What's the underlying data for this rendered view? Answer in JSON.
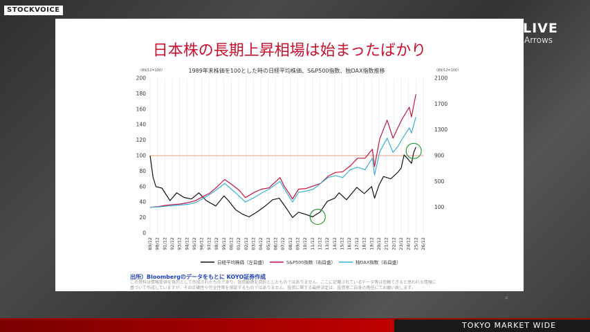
{
  "brand": {
    "stockvoice": "STOCKVOICE",
    "live": "LIVE",
    "arrows": "Arrows"
  },
  "slide": {
    "title": "日本株の長期上昇相場は始まったばかり",
    "source": "出所）Bloombergのデータをもとに KOYO証券作成",
    "disclaimer_1": "この資料は情報提供を目的として作成されたものであり、投資勧誘を目的としたものではありません。ここに記載されているデータ等は信頼できると思われる情報に",
    "disclaimer_2": "基づいて作成していますが、その正確性や完全性等を保証するものではありません。投資に関する最終決定は、投資者ご自身の責任にてお願い致します。",
    "page": "4"
  },
  "footer": {
    "market": "TOKYO MARKET WIDE"
  },
  "chart_data": {
    "type": "line",
    "title": "1989年末株価を100とした時の日経平均株価、S&P500指数、独DAX指数推移",
    "ylabel_left": "（89/12=100）",
    "ylabel_right": "（89/12=100）",
    "ylim_left": [
      0,
      200
    ],
    "yticks_left": [
      0,
      20,
      40,
      60,
      80,
      100,
      120,
      140,
      160,
      180,
      200
    ],
    "ylim_right": [
      -300,
      2100
    ],
    "yticks_right": [
      100,
      500,
      900,
      1300,
      1700,
      2100
    ],
    "x_tick_labels": [
      "89/12",
      "90/12",
      "91/12",
      "92/12",
      "93/12",
      "94/12",
      "95/12",
      "96/12",
      "97/12",
      "98/12",
      "99/12",
      "00/12",
      "01/12",
      "02/12",
      "03/12",
      "04/12",
      "05/12",
      "06/12",
      "07/12",
      "08/12",
      "09/12",
      "10/12",
      "11/12",
      "12/12",
      "13/12",
      "14/12",
      "15/12",
      "16/12",
      "17/12",
      "18/12",
      "19/12",
      "20/12",
      "21/12",
      "22/12",
      "23/12",
      "24/12",
      "25/12",
      "26/12"
    ],
    "series": [
      {
        "name": "日経平均株価（左目盛）",
        "color": "#111111",
        "x": [
          1989.9,
          1990.3,
          1990.7,
          1991.5,
          1992.6,
          1993.5,
          1994.5,
          1995.5,
          1996.5,
          1997.5,
          1998.8,
          1999.9,
          2000.5,
          2001.5,
          2002.5,
          2003.3,
          2004.5,
          2005.5,
          2006.5,
          2007.4,
          2008.5,
          2009.2,
          2010.0,
          2011.0,
          2011.9,
          2012.9,
          2013.9,
          2014.9,
          2015.5,
          2016.5,
          2017.9,
          2018.9,
          2019.9,
          2020.3,
          2020.9,
          2021.5,
          2022.5,
          2023.5,
          2023.9,
          2024.3,
          2024.7,
          2025.3,
          2025.6,
          2025.9
        ],
        "values": [
          100,
          72,
          60,
          58,
          42,
          52,
          46,
          44,
          52,
          42,
          35,
          48,
          42,
          30,
          24,
          21,
          28,
          35,
          43,
          45,
          30,
          20,
          27,
          24,
          21,
          27,
          41,
          45,
          52,
          43,
          59,
          51,
          60,
          45,
          62,
          73,
          70,
          79,
          84,
          101,
          97,
          90,
          104,
          111
        ]
      },
      {
        "name": "S&P500指数（右目盛）",
        "color": "#c0143c",
        "x": [
          1989.9,
          1991.0,
          1992.0,
          1993.0,
          1994.0,
          1995.0,
          1996.0,
          1997.0,
          1998.0,
          1999.0,
          2000.0,
          2001.0,
          2002.0,
          2002.8,
          2004.0,
          2005.0,
          2006.0,
          2007.5,
          2008.0,
          2009.2,
          2010.0,
          2011.0,
          2012.0,
          2013.0,
          2014.0,
          2015.0,
          2016.0,
          2017.0,
          2018.0,
          2019.0,
          2020.0,
          2020.3,
          2021.0,
          2022.0,
          2022.8,
          2023.5,
          2024.0,
          2025.0,
          2025.3,
          2025.9
        ],
        "values": [
          100,
          110,
          130,
          140,
          150,
          170,
          200,
          260,
          320,
          420,
          530,
          450,
          360,
          250,
          330,
          380,
          400,
          560,
          440,
          230,
          380,
          390,
          430,
          470,
          580,
          640,
          650,
          740,
          860,
          860,
          1000,
          730,
          1160,
          1450,
          1170,
          1340,
          1460,
          1650,
          1500,
          1850
        ]
      },
      {
        "name": "独DAX指数（右目盛）",
        "color": "#3aaed8",
        "x": [
          1989.9,
          1991.0,
          1992.0,
          1993.0,
          1994.0,
          1995.0,
          1996.0,
          1997.0,
          1998.0,
          1999.0,
          2000.0,
          2001.0,
          2002.0,
          2002.8,
          2004.0,
          2005.0,
          2006.0,
          2007.5,
          2008.0,
          2009.2,
          2010.0,
          2011.0,
          2012.0,
          2013.0,
          2014.0,
          2015.0,
          2016.0,
          2017.0,
          2018.0,
          2019.0,
          2020.0,
          2020.3,
          2021.0,
          2022.0,
          2022.8,
          2023.5,
          2024.0,
          2025.0,
          2025.3,
          2025.9
        ],
        "values": [
          100,
          105,
          115,
          125,
          135,
          145,
          170,
          230,
          300,
          380,
          470,
          370,
          270,
          180,
          250,
          320,
          380,
          500,
          400,
          180,
          330,
          350,
          380,
          470,
          560,
          590,
          560,
          680,
          720,
          680,
          860,
          600,
          960,
          1170,
          950,
          1050,
          1150,
          1330,
          1250,
          1500
        ]
      }
    ],
    "reference_line": {
      "value": 100,
      "axis": "left",
      "color": "#e0a080"
    },
    "annotations": [
      {
        "type": "circle",
        "x": 2012.6,
        "y": 21,
        "color": "#2e9b3a"
      },
      {
        "type": "circle",
        "x": 2025.6,
        "y": 106,
        "color": "#2e9b3a"
      }
    ],
    "legend_position": "bottom",
    "grid": "vertical"
  }
}
